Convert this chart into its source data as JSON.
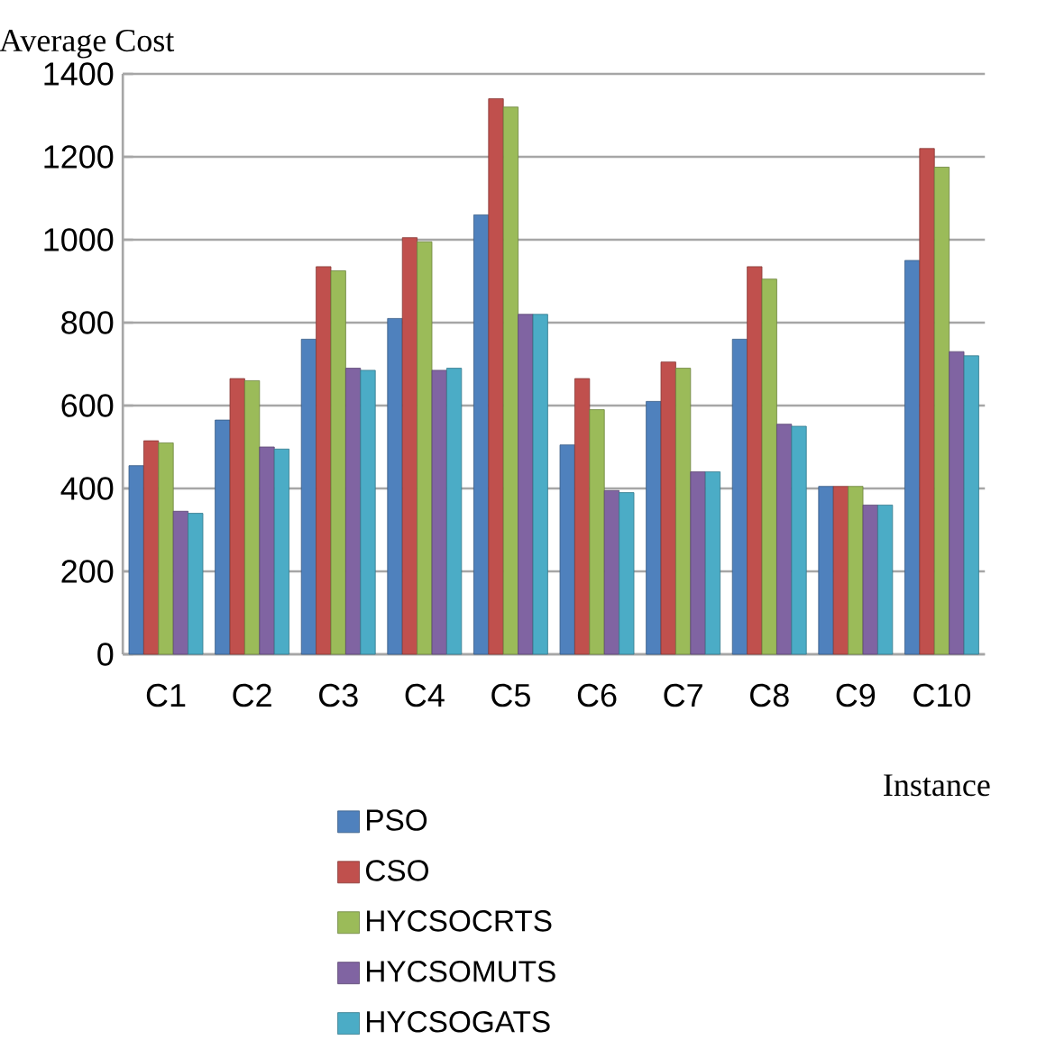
{
  "chart_data": {
    "type": "bar",
    "ylabel": "Average Cost",
    "xlabel": "Instance",
    "categories": [
      "C1",
      "C2",
      "C3",
      "C4",
      "C5",
      "C6",
      "C7",
      "C8",
      "C9",
      "C10"
    ],
    "series": [
      {
        "name": "PSO",
        "color": "#4f81bd",
        "values": [
          455,
          565,
          760,
          810,
          1060,
          505,
          610,
          760,
          405,
          950
        ]
      },
      {
        "name": "CSO",
        "color": "#c0504d",
        "values": [
          515,
          665,
          935,
          1005,
          1340,
          665,
          705,
          935,
          405,
          1220
        ]
      },
      {
        "name": "HYCSOCRTS",
        "color": "#9bbb59",
        "values": [
          510,
          660,
          925,
          995,
          1320,
          590,
          690,
          905,
          405,
          1175
        ]
      },
      {
        "name": "HYCSOMUTS",
        "color": "#8064a2",
        "values": [
          345,
          500,
          690,
          685,
          820,
          395,
          440,
          555,
          360,
          730
        ]
      },
      {
        "name": "HYCSOGATS",
        "color": "#4bacc6",
        "values": [
          340,
          495,
          685,
          690,
          820,
          390,
          440,
          550,
          360,
          720
        ]
      }
    ],
    "ylim": [
      0,
      1400
    ],
    "yticks": [
      0,
      200,
      400,
      600,
      800,
      1000,
      1200,
      1400
    ],
    "grid": "y",
    "legend": "bottom"
  }
}
